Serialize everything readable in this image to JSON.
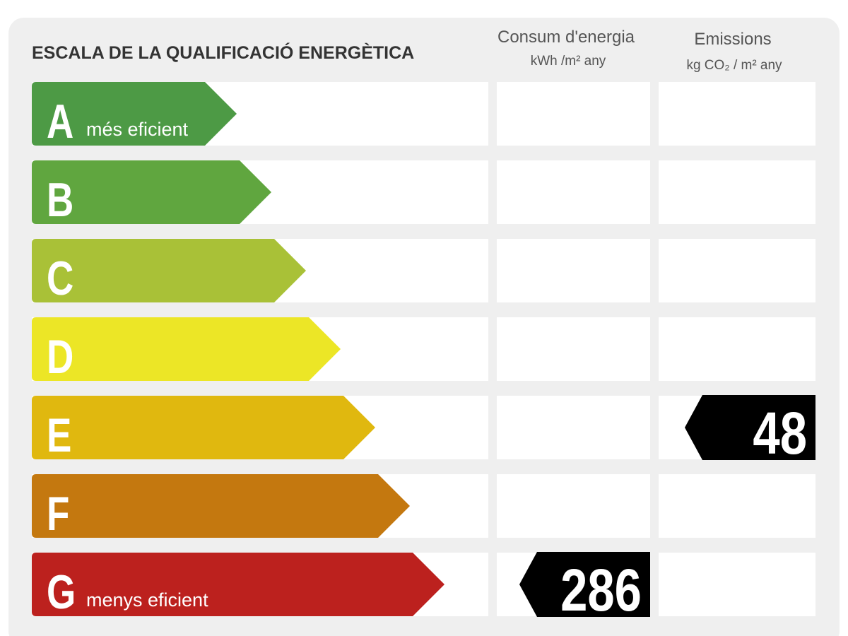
{
  "header": {
    "title": "ESCALA DE LA QUALIFICACIÓ ENERGÈTICA",
    "columns": [
      {
        "title": "Consum d'energia",
        "unit": "kWh /m² any"
      },
      {
        "title": "Emissions",
        "unit": "kg CO₂ / m² any"
      }
    ]
  },
  "rows": [
    {
      "letter": "A",
      "label": "més eficient",
      "color": "#4d9a45"
    },
    {
      "letter": "B",
      "color": "#60a63f"
    },
    {
      "letter": "C",
      "color": "#a9c137"
    },
    {
      "letter": "D",
      "color": "#ece626"
    },
    {
      "letter": "E",
      "color": "#e0b80f",
      "emissions": 48
    },
    {
      "letter": "F",
      "color": "#c4780f"
    },
    {
      "letter": "G",
      "label": "menys eficient",
      "color": "#bc211e",
      "consumption": 286
    }
  ]
}
